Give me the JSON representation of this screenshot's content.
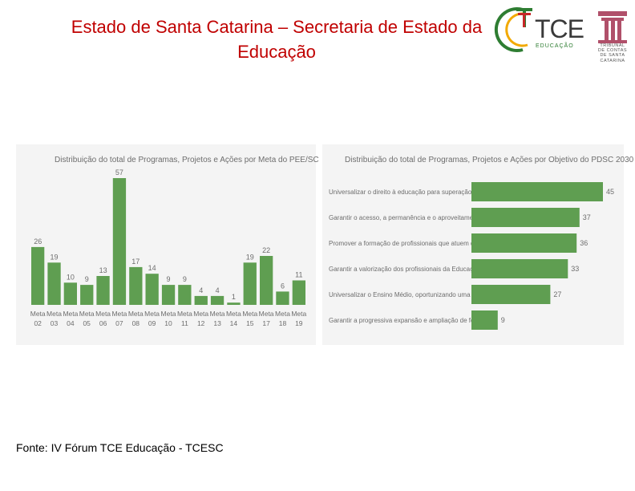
{
  "header": {
    "title_line1": "Estado de Santa Catarina – Secretaria de Estado da",
    "title_line2": "Educação"
  },
  "logos": {
    "tce_text": "TCE",
    "tce_sub": "EDUCAÇÃO",
    "seal_lines": [
      "TRIBUNAL",
      "DE CONTAS",
      "DE SANTA",
      "CATARINA"
    ]
  },
  "colors": {
    "bar": "#5f9e51",
    "title": "#c00000",
    "axis_text": "#6d6d6d"
  },
  "chart_data": [
    {
      "type": "bar",
      "title": "Distribuição do total de Programas, Projetos e Ações por Meta do PEE/SC",
      "categories": [
        "Meta 02",
        "Meta 03",
        "Meta 04",
        "Meta 05",
        "Meta 06",
        "Meta 07",
        "Meta 08",
        "Meta 09",
        "Meta 10",
        "Meta 11",
        "Meta 12",
        "Meta 13",
        "Meta 14",
        "Meta 15",
        "Meta 17",
        "Meta 18",
        "Meta 19"
      ],
      "category_lines": [
        [
          "Meta",
          "02"
        ],
        [
          "Meta",
          "03"
        ],
        [
          "Meta",
          "04"
        ],
        [
          "Meta",
          "05"
        ],
        [
          "Meta",
          "06"
        ],
        [
          "Meta",
          "07"
        ],
        [
          "Meta",
          "08"
        ],
        [
          "Meta",
          "09"
        ],
        [
          "Meta",
          "10"
        ],
        [
          "Meta",
          "11"
        ],
        [
          "Meta",
          "12"
        ],
        [
          "Meta",
          "13"
        ],
        [
          "Meta",
          "14"
        ],
        [
          "Meta",
          "15"
        ],
        [
          "Meta",
          "17"
        ],
        [
          "Meta",
          "18"
        ],
        [
          "Meta",
          "19"
        ]
      ],
      "values": [
        26,
        19,
        10,
        9,
        13,
        57,
        17,
        14,
        9,
        9,
        4,
        4,
        1,
        19,
        22,
        6,
        11
      ],
      "ylim": [
        0,
        57
      ],
      "orientation": "vertical",
      "grid": false
    },
    {
      "type": "bar",
      "title": "Distribuição do total de Programas, Projetos e Ações por Objetivo do PDSC 2030",
      "categories": [
        "Universalizar o direito à educação para superação das d...",
        "Garantir o acesso, a permanência e o aproveitamento e...",
        "Promover a formação de profissionais que atuem de for...",
        "Garantir a valorização dos profissionais da Educação Bá...",
        "Universalizar o Ensino Médio, oportunizando uma apre...",
        "Garantir a progressiva expansão e ampliação de fontes ..."
      ],
      "values": [
        45,
        37,
        36,
        33,
        27,
        9
      ],
      "xlim": [
        0,
        45
      ],
      "orientation": "horizontal",
      "grid": false
    }
  ],
  "footer": {
    "source": "Fonte: IV Fórum TCE Educação - TCESC"
  }
}
